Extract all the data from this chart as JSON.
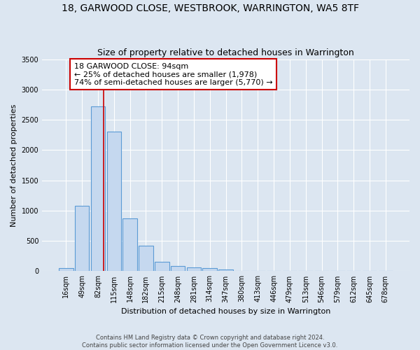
{
  "title": "18, GARWOOD CLOSE, WESTBROOK, WARRINGTON, WA5 8TF",
  "subtitle": "Size of property relative to detached houses in Warrington",
  "xlabel": "Distribution of detached houses by size in Warrington",
  "ylabel": "Number of detached properties",
  "footer_line1": "Contains HM Land Registry data © Crown copyright and database right 2024.",
  "footer_line2": "Contains public sector information licensed under the Open Government Licence v3.0.",
  "bar_labels": [
    "16sqm",
    "49sqm",
    "82sqm",
    "115sqm",
    "148sqm",
    "182sqm",
    "215sqm",
    "248sqm",
    "281sqm",
    "314sqm",
    "347sqm",
    "380sqm",
    "413sqm",
    "446sqm",
    "479sqm",
    "513sqm",
    "546sqm",
    "579sqm",
    "612sqm",
    "645sqm",
    "678sqm"
  ],
  "bar_values": [
    50,
    1080,
    2720,
    2300,
    870,
    420,
    160,
    90,
    60,
    50,
    30,
    0,
    0,
    0,
    0,
    0,
    0,
    0,
    0,
    0,
    0
  ],
  "bar_color": "#c5d8ef",
  "bar_edge_color": "#5b9bd5",
  "vline_x_index": 2.36,
  "vline_color": "#cc0000",
  "annotation_text": "18 GARWOOD CLOSE: 94sqm\n← 25% of detached houses are smaller (1,978)\n74% of semi-detached houses are larger (5,770) →",
  "annotation_box_color": "#ffffff",
  "annotation_box_edge": "#cc0000",
  "ylim": [
    0,
    3500
  ],
  "yticks": [
    0,
    500,
    1000,
    1500,
    2000,
    2500,
    3000,
    3500
  ],
  "background_color": "#dce6f1",
  "plot_bg_color": "#dce6f1",
  "grid_color": "#ffffff",
  "title_fontsize": 10,
  "subtitle_fontsize": 9,
  "axis_label_fontsize": 8,
  "tick_fontsize": 7,
  "annotation_fontsize": 8,
  "figsize": [
    6.0,
    5.0
  ],
  "dpi": 100
}
